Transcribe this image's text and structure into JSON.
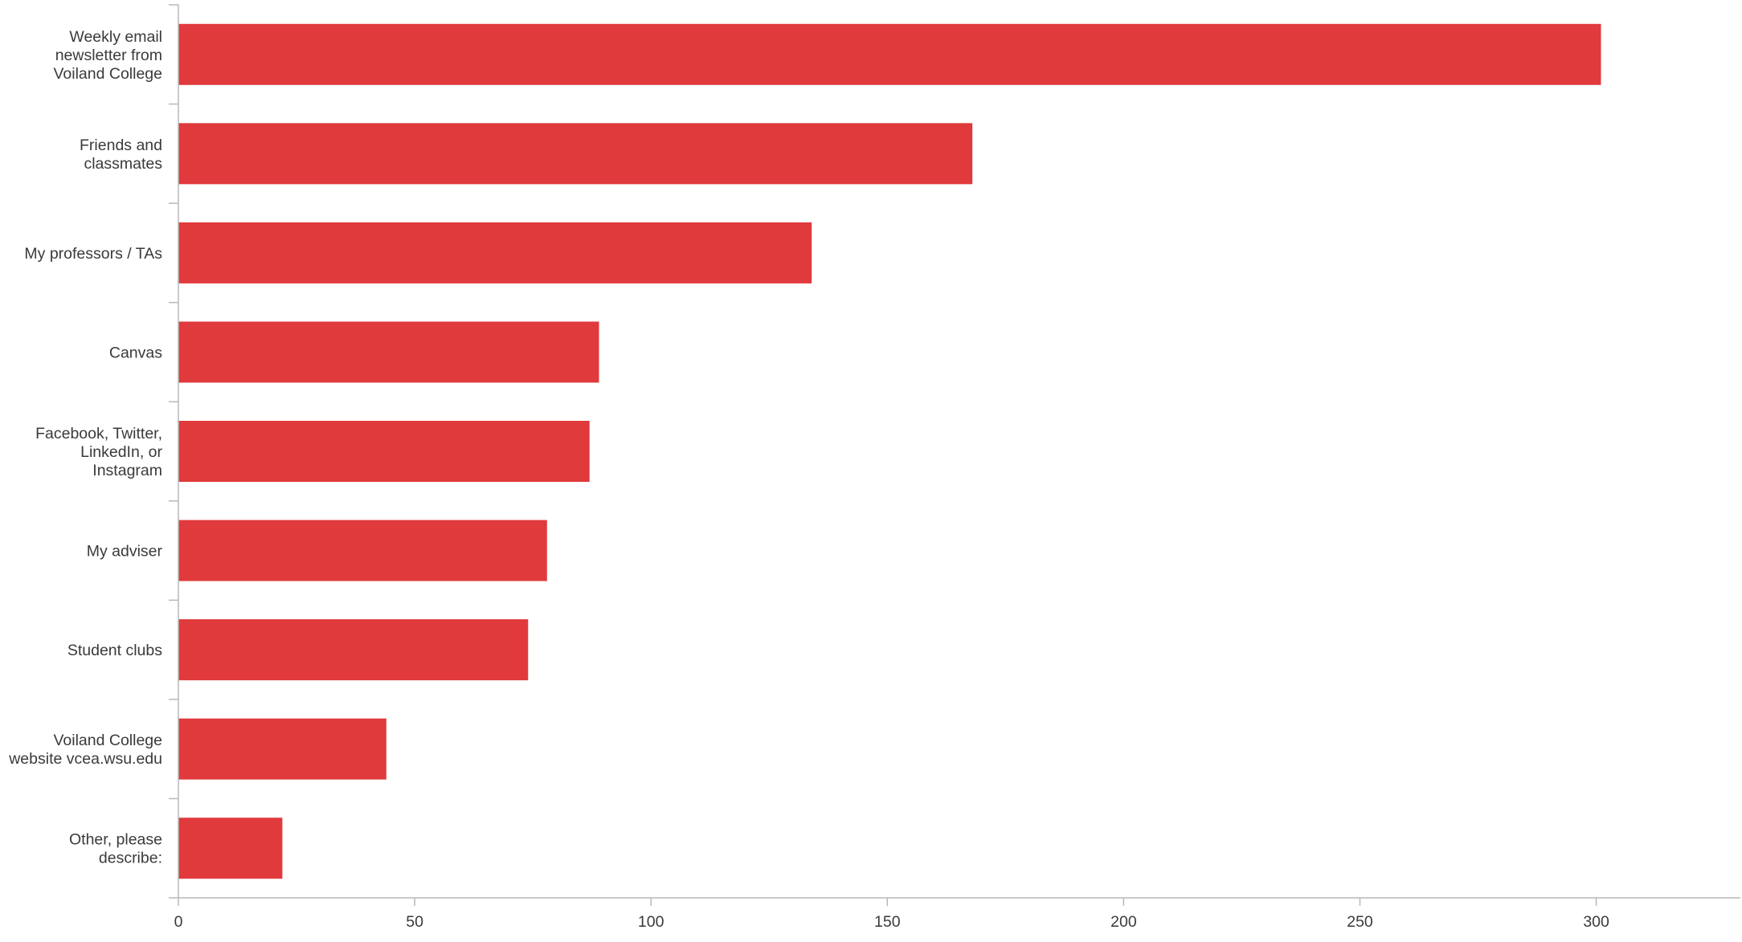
{
  "chart_data": {
    "type": "bar",
    "orientation": "horizontal",
    "title": "",
    "xlabel": "",
    "ylabel": "",
    "xlim": [
      0,
      330
    ],
    "xticks": [
      0,
      50,
      100,
      150,
      200,
      250,
      300
    ],
    "grid": false,
    "legend": "none",
    "bar_color": "#e03a3c",
    "axis_color": "#b8b8b8",
    "label_color": "#3a3a3a",
    "categories": [
      "Weekly email newsletter from Voiland College",
      "Friends and classmates",
      "My professors / TAs",
      "Canvas",
      "Facebook, Twitter, LinkedIn, or Instagram",
      "My adviser",
      "Student clubs",
      "Voiland College website vcea.wsu.edu",
      "Other, please describe:"
    ],
    "category_lines": [
      [
        "Weekly email",
        "newsletter from",
        "Voiland College"
      ],
      [
        "Friends and",
        "classmates"
      ],
      [
        "My professors / TAs"
      ],
      [
        "Canvas"
      ],
      [
        "Facebook, Twitter,",
        "LinkedIn, or",
        "Instagram"
      ],
      [
        "My adviser"
      ],
      [
        "Student clubs"
      ],
      [
        "Voiland College",
        "website vcea.wsu.edu"
      ],
      [
        "Other, please",
        "describe:"
      ]
    ],
    "values": [
      301,
      168,
      134,
      89,
      87,
      78,
      74,
      44,
      22
    ]
  }
}
